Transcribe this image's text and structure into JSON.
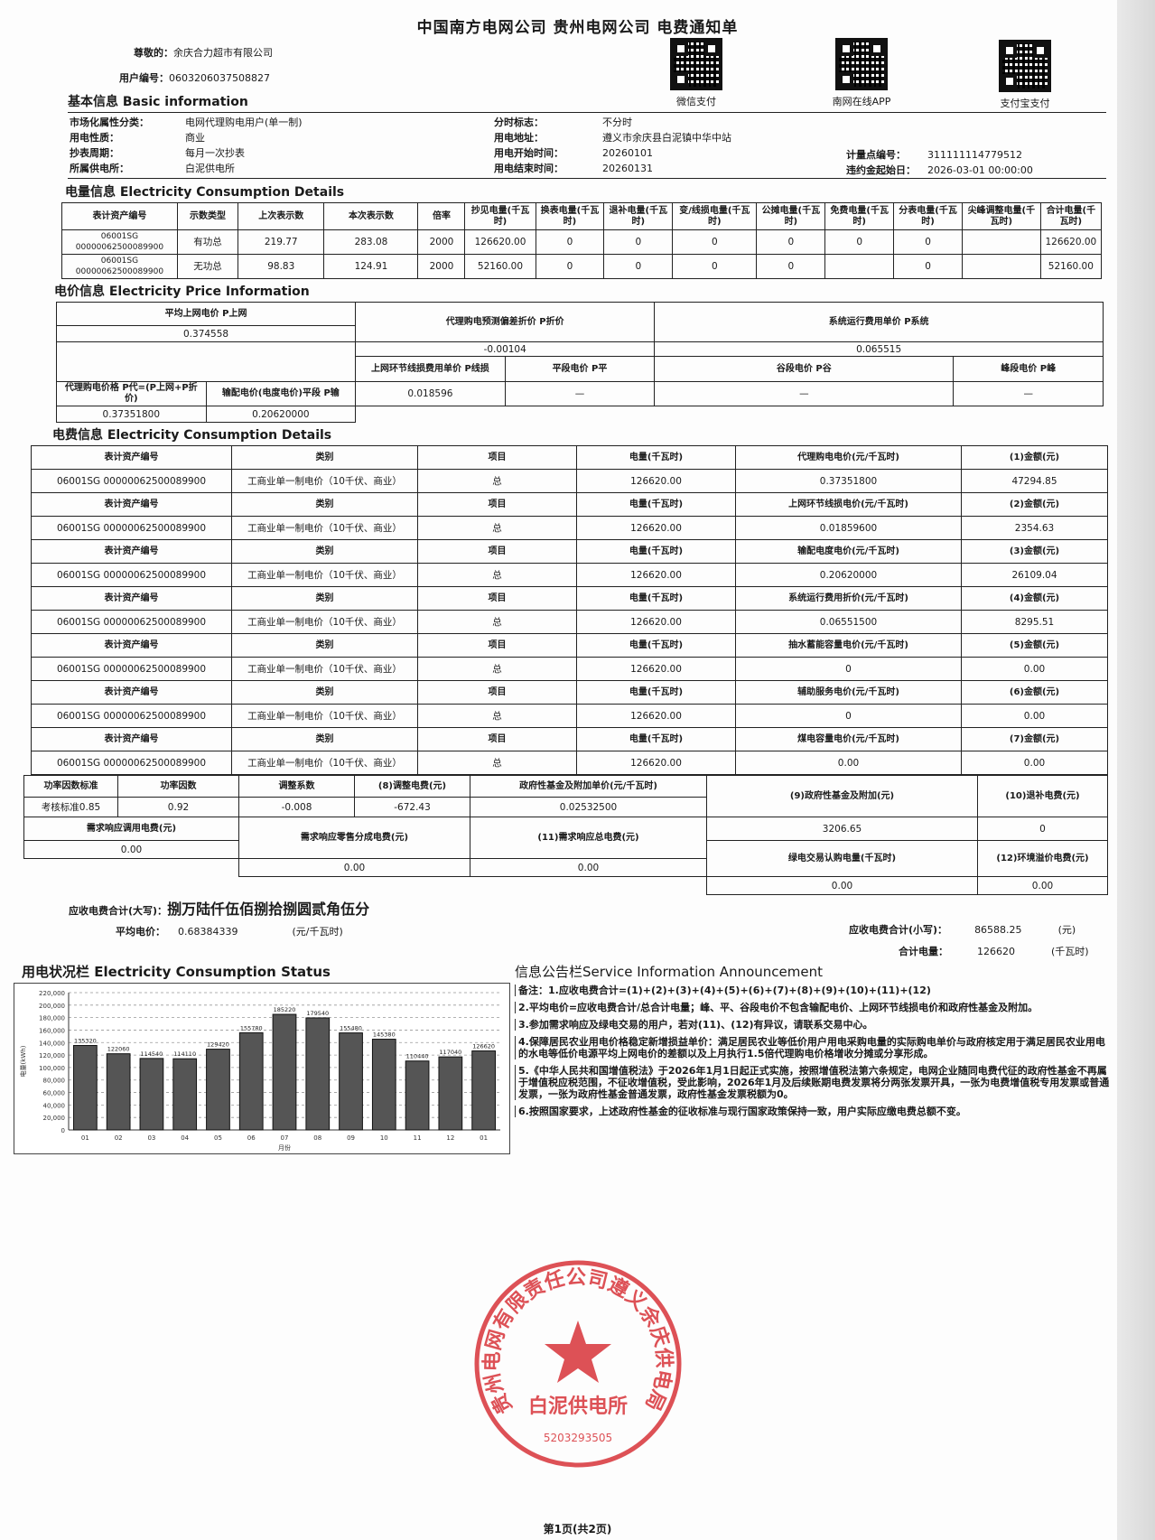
{
  "header": {
    "title": "中国南方电网公司 贵州电网公司 电费通知单",
    "greeting_label": "尊敬的：",
    "customer": "余庆合力超市有限公司",
    "user_no_label": "用户编号：",
    "user_no": "0603206037508827"
  },
  "qr": [
    {
      "label": "微信支付"
    },
    {
      "label": "南网在线APP"
    },
    {
      "label": "支付宝支付"
    }
  ],
  "stamp": {
    "outer": "贵州电网有限责任公司遵义余庆供电局",
    "inner": "白泥供电所",
    "code": "5203293505",
    "color": "#d8343a"
  },
  "basic": {
    "heading": "基本信息 Basic information",
    "left": [
      {
        "k": "市场化属性分类：",
        "v": "电网代理购电用户(单一制)"
      },
      {
        "k": "用电性质：",
        "v": "商业"
      },
      {
        "k": "抄表周期：",
        "v": "每月一次抄表"
      },
      {
        "k": "所属供电所：",
        "v": "白泥供电所"
      }
    ],
    "middle": [
      {
        "k": "分时标志：",
        "v": "不分时"
      },
      {
        "k": "用电地址：",
        "v": "遵义市余庆县白泥镇中华中站"
      },
      {
        "k": "用电开始时间：",
        "v": "20260101"
      },
      {
        "k": "用电结束时间：",
        "v": "20260131"
      }
    ],
    "right": [
      {
        "k": "计量点编号：",
        "v": "311111114779512"
      },
      {
        "k": "违约金起始日：",
        "v": "2026-03-01 00:00:00"
      }
    ]
  },
  "consumption": {
    "heading": "电量信息 Electricity Consumption Details",
    "headers": [
      "表计资产编号",
      "示数类型",
      "上次表示数",
      "本次表示数",
      "倍率",
      "抄见电量(千瓦时)",
      "换表电量(千瓦时)",
      "退补电量(千瓦时)",
      "变/线损电量(千瓦时)",
      "公摊电量(千瓦时)",
      "免费电量(千瓦时)",
      "分表电量(千瓦时)",
      "尖峰调整电量(千瓦时)",
      "合计电量(千瓦时)"
    ],
    "rows": [
      [
        "06001SG 00000062500089900",
        "有功总",
        "219.77",
        "283.08",
        "2000",
        "126620.00",
        "0",
        "0",
        "0",
        "0",
        "0",
        "0",
        "",
        "126620.00"
      ],
      [
        "06001SG 00000062500089900",
        "无功总",
        "98.83",
        "124.91",
        "2000",
        "52160.00",
        "0",
        "0",
        "0",
        "0",
        "",
        "0",
        "",
        "52160.00"
      ]
    ]
  },
  "price": {
    "heading": "电价信息 Electricity Price Information",
    "avg_grid_label": "平均上网电价 P上网",
    "avg_grid": "0.374558",
    "discount_label": "代理购电预测偏差折价 P折价",
    "discount": "-0.00104",
    "system_label": "系统运行费用单价 P系统",
    "system": "0.065515",
    "agent_label": "代理购电价格 P代=(P上网+P折价)",
    "agent": "0.37351800",
    "trans_label": "输配电价(电度电价)平段 P输",
    "trans": "0.20620000",
    "loss_label": "上网环节线损费用单价 P线损",
    "loss": "0.018596",
    "flat_label": "平段电价 P平",
    "flat": "—",
    "valley_label": "谷段电价 P谷",
    "valley": "—",
    "peak_label": "峰段电价 P峰",
    "peak": "—"
  },
  "fees": {
    "heading": "电费信息 Electricity Consumption Details",
    "meter_label": "表计资产编号",
    "category_label": "类别",
    "item_label": "项目",
    "qty_label": "电量(千瓦时)",
    "meter": "06001SG 00000062500089900",
    "category": "工商业单一制电价（10千伏、商业）",
    "item": "总",
    "qty": "126620.00",
    "blocks": [
      {
        "price_label": "代理购电电价(元/千瓦时)",
        "price": "0.37351800",
        "amount_label": "(1)金额(元)",
        "amount": "47294.85"
      },
      {
        "price_label": "上网环节线损电价(元/千瓦时)",
        "price": "0.01859600",
        "amount_label": "(2)金额(元)",
        "amount": "2354.63"
      },
      {
        "price_label": "输配电度电价(元/千瓦时)",
        "price": "0.20620000",
        "amount_label": "(3)金额(元)",
        "amount": "26109.04"
      },
      {
        "price_label": "系统运行费用折价(元/千瓦时)",
        "price": "0.06551500",
        "amount_label": "(4)金额(元)",
        "amount": "8295.51"
      },
      {
        "price_label": "抽水蓄能容量电价(元/千瓦时)",
        "price": "0",
        "amount_label": "(5)金额(元)",
        "amount": "0.00"
      },
      {
        "price_label": "辅助服务电价(元/千瓦时)",
        "price": "0",
        "amount_label": "(6)金额(元)",
        "amount": "0.00"
      },
      {
        "price_label": "煤电容量电价(元/千瓦时)",
        "price": "0.00",
        "amount_label": "(7)金额(元)",
        "amount": "0.00"
      }
    ]
  },
  "factor": {
    "std_label": "功率因数标准",
    "std": "考核标准0.85",
    "pf_label": "功率因数",
    "pf": "0.92",
    "coef_label": "调整系数",
    "coef": "-0.008",
    "adj_label": "(8)调整电费(元)",
    "adj": "-672.43",
    "gov_price_label": "政府性基金及附加单价(元/千瓦时)",
    "gov_price": "0.02532500",
    "gov_label": "(9)政府性基金及附加(元)",
    "gov": "3206.65",
    "refund_label": "(10)退补电费(元)",
    "refund": "0",
    "dr_call_label": "需求响应调用电费(元)",
    "dr_call": "0.00",
    "dr_share_label": "需求响应零售分成电费(元)",
    "dr_share": "0.00",
    "dr_total_label": "(11)需求响应总电费(元)",
    "dr_total": "0.00",
    "green_label": "绿电交易认购电量(千瓦时)",
    "green": "0.00",
    "env_label": "(12)环境溢价电费(元)",
    "env": "0.00"
  },
  "totals": {
    "upper_label": "应收电费合计(大写)：",
    "upper": "捌万陆仟伍佰捌拾捌圆贰角伍分",
    "avg_label": "平均电价：",
    "avg": "0.68384339",
    "avg_unit": "(元/千瓦时)",
    "lower_label": "应收电费合计(小写)：",
    "lower": "86588.25",
    "lower_unit": "(元)",
    "kwh_label": "合计电量：",
    "kwh": "126620",
    "kwh_unit": "(千瓦时)"
  },
  "chart_data": {
    "type": "bar",
    "title": "用电状况栏 Electricity Consumption Status",
    "xlabel": "月份",
    "ylabel": "电量(kWh)",
    "categories": [
      "01",
      "02",
      "03",
      "04",
      "05",
      "06",
      "07",
      "08",
      "09",
      "10",
      "11",
      "12",
      "01"
    ],
    "values": [
      135320,
      122060,
      114540,
      114110,
      129420,
      155780,
      185220,
      179540,
      155480,
      145380,
      110440,
      117040,
      126620
    ],
    "ylim": [
      0,
      220000
    ],
    "yticks": [
      "0",
      "20,000",
      "40,000",
      "60,000",
      "80,000",
      "100,000",
      "120,000",
      "140,000",
      "160,000",
      "180,000",
      "200,000",
      "220,000"
    ],
    "grid": true,
    "bar_color": "#555555"
  },
  "announce": {
    "heading": "信息公告栏Service Information Announcement",
    "items": [
      "备注：1.应收电费合计=(1)+(2)+(3)+(4)+(5)+(6)+(7)+(8)+(9)+(10)+(11)+(12)",
      "2.平均电价=应收电费合计/总合计电量；峰、平、谷段电价不包含输配电价、上网环节线损电价和政府性基金及附加。",
      "3.参加需求响应及绿电交易的用户，若对(11)、(12)有异议，请联系交易中心。",
      "4.保障居民农业用电价格稳定新增损益单价：满足居民农业等低价用户用电采购电量的实际购电单价与政府核定用于满足居民农业用电的水电等低价电源平均上网电价的差额以及上月执行1.5倍代理购电价格增收分摊或分享形成。",
      "5.《中华人民共和国增值税法》于2026年1月1日起正式实施，按照增值税法第六条规定，电网企业随同电费代征的政府性基金不再属于增值税应税范围，不征收增值税，受此影响，2026年1月及后续账期电费发票将分两张发票开具，一张为电费增值税专用发票或普通发票，一张为政府性基金普通发票，政府性基金发票税额为0。",
      "6.按照国家要求，上述政府性基金的征收标准与现行国家政策保持一致，用户实际应缴电费总额不变。"
    ]
  },
  "footer": {
    "page": "第1页(共2页)"
  }
}
